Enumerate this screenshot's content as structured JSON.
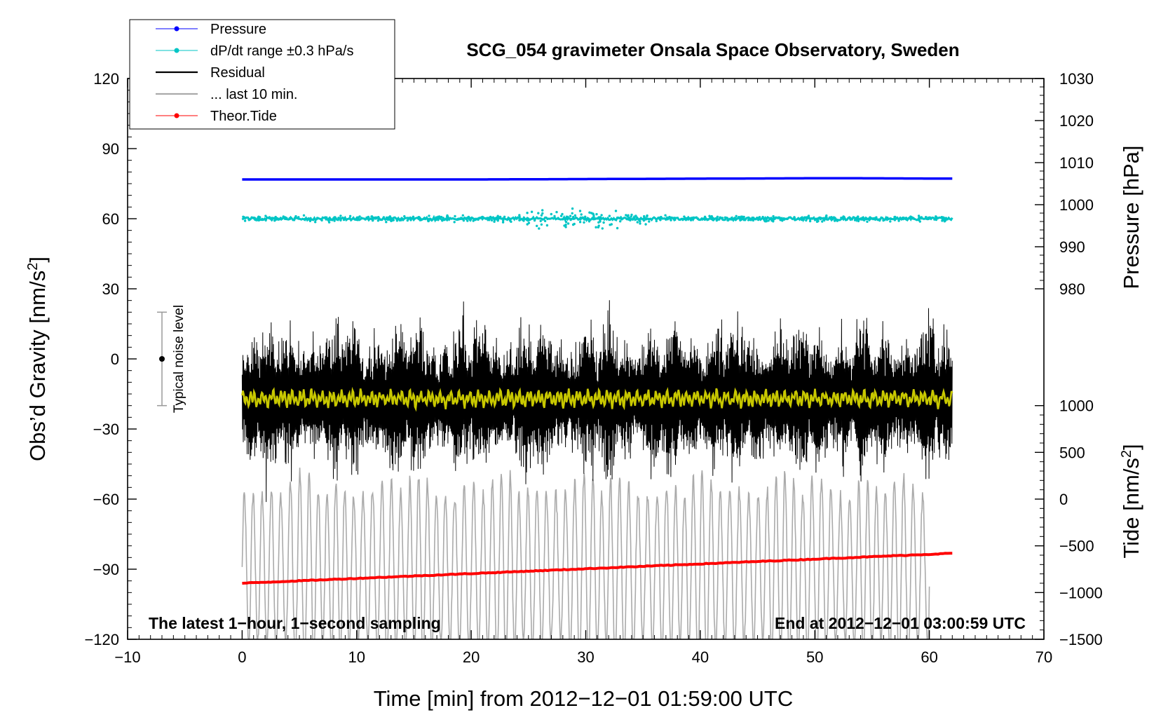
{
  "chart_data": {
    "type": "line",
    "title": "SCG_054 gravimeter Onsala Space Observatory, Sweden",
    "xlabel": "Time [min] from 2012−12−01 01:59:00 UTC",
    "ylabel": "Obs’d Gravity [nm/s",
    "ylabel_sup": "2",
    "ylabel_close": "]",
    "y2label_pressure": "Pressure [hPa]",
    "y2label_tide": "Tide [nm/s",
    "y2label_tide_sup": "2",
    "y2label_tide_close": "]",
    "xlim": [
      -10,
      70
    ],
    "ylim": [
      -120,
      120
    ],
    "pressure_axis": {
      "range_at_gravity": [
        30,
        120
      ],
      "values_range": [
        980,
        1030
      ]
    },
    "tide_axis": {
      "range_at_gravity": [
        -120,
        -20
      ],
      "values_range": [
        -1500,
        1000
      ]
    },
    "x_ticks": [
      "−10",
      "0",
      "10",
      "20",
      "30",
      "40",
      "50",
      "60",
      "70"
    ],
    "x_tick_values": [
      -10,
      0,
      10,
      20,
      30,
      40,
      50,
      60,
      70
    ],
    "y_ticks": [
      "120",
      "90",
      "60",
      "30",
      "0",
      "−30",
      "−60",
      "−90",
      "−120"
    ],
    "y_tick_values": [
      120,
      90,
      60,
      30,
      0,
      -30,
      -60,
      -90,
      -120
    ],
    "pressure_ticks": [
      "1030",
      "1020",
      "1010",
      "1000",
      "990",
      "980"
    ],
    "pressure_tick_values": [
      1030,
      1020,
      1010,
      1000,
      990,
      980
    ],
    "tide_ticks": [
      "1000",
      "500",
      "0",
      "−500",
      "−1000",
      "−1500"
    ],
    "tide_tick_values": [
      1000,
      500,
      0,
      -500,
      -1000,
      -1500
    ],
    "legend": [
      {
        "label": "Pressure",
        "color": "#0000ff",
        "marker": true
      },
      {
        "label": "dP/dt range ±0.3 hPa/s",
        "color": "#00c5c5",
        "marker": true
      },
      {
        "label": "Residual",
        "color": "#000000",
        "marker": false
      },
      {
        "label": "... last 10 min.",
        "color": "#aaaaaa",
        "marker": false
      },
      {
        "label": "Theor.Tide",
        "color": "#ff0000",
        "marker": true
      }
    ],
    "annotations": {
      "bottom_left": "The latest 1−hour, 1−second sampling",
      "bottom_right": "End at 2012−12−01 03:00:59 UTC",
      "noise_label": "Typical noise level"
    },
    "noise_bar": {
      "x": -7,
      "center": 0,
      "low": -20,
      "high": 20
    },
    "series": [
      {
        "name": "Pressure",
        "color": "#0000ff",
        "x_range": [
          0,
          62
        ],
        "values_hPa": [
          1006.0,
          1006.0,
          1006.0,
          1006.1,
          1006.2,
          1006.3,
          1006.2
        ]
      },
      {
        "name": "dP/dt range ±0.3 hPa/s",
        "color": "#00c5c5",
        "x_range": [
          0,
          62
        ],
        "center_gravity": 60,
        "typical_spread": 2
      },
      {
        "name": "Residual",
        "color": "#000000",
        "x_range": [
          0,
          62
        ],
        "center_gravity": -17,
        "min": -62,
        "max": 33
      },
      {
        "name": "... last 10 min.",
        "color": "#aaaaaa",
        "x_range": [
          0,
          60
        ],
        "center_gravity": -90,
        "min": -137,
        "max": -42
      },
      {
        "name": "Residual (smoothed)",
        "color": "#c8c800",
        "x_range": [
          0,
          62
        ],
        "center_gravity": -17
      },
      {
        "name": "Theor.Tide",
        "color": "#ff0000",
        "x_range": [
          0,
          62
        ],
        "values_nm_s2": [
          -900,
          -580
        ]
      }
    ],
    "colors": {
      "pressure": "#0000ff",
      "dpdt": "#00c5c5",
      "residual": "#000000",
      "last10": "#aaaaaa",
      "smooth": "#c8c800",
      "tide": "#ff0000"
    }
  }
}
